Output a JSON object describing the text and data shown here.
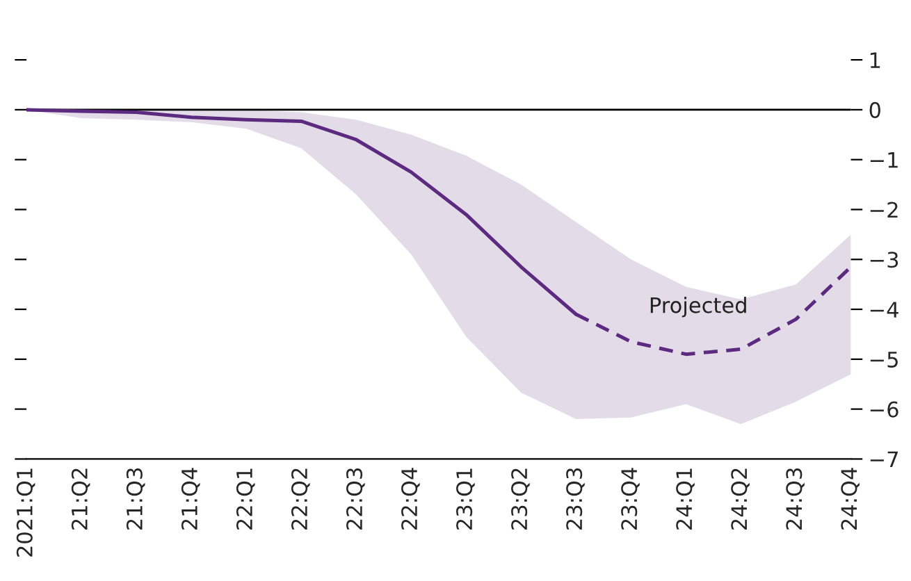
{
  "chart_data": {
    "type": "line",
    "categories": [
      "2021:Q1",
      "21:Q2",
      "21:Q3",
      "21:Q4",
      "22:Q1",
      "22:Q2",
      "22:Q3",
      "22:Q4",
      "23:Q1",
      "23:Q2",
      "23:Q3",
      "23:Q4",
      "24:Q1",
      "24:Q2",
      "24:Q3",
      "24:Q4"
    ],
    "series": [
      {
        "color": "#5c2a7f",
        "line_style": "solid",
        "values": [
          0,
          -0.03,
          -0.05,
          -0.15,
          -0.2,
          -0.23,
          -0.6,
          -1.25,
          -2.1,
          -3.15,
          -4.1,
          null,
          null,
          null,
          null,
          null
        ],
        "lower": [
          0,
          -0.17,
          -0.2,
          -0.25,
          -0.38,
          -0.77,
          -1.7,
          -2.9,
          -4.55,
          -5.67,
          -6.2,
          -6.17,
          -5.9,
          -6.3,
          -5.85,
          -5.3
        ],
        "upper": [
          0,
          0,
          0,
          0,
          0,
          -0.05,
          -0.2,
          -0.5,
          -0.92,
          -1.5,
          -2.25,
          -3.0,
          -3.55,
          -3.8,
          -3.5,
          -2.5
        ]
      },
      {
        "color": "#5c2a7f",
        "line_style": "dashed",
        "values": [
          null,
          null,
          null,
          null,
          null,
          null,
          null,
          null,
          null,
          null,
          -4.1,
          -4.65,
          -4.9,
          -4.8,
          -4.2,
          -3.15
        ]
      }
    ],
    "ylim": [
      -7,
      1
    ],
    "yticks": [
      1,
      0,
      {
        "value": -1,
        "label": "−1"
      },
      {
        "value": -2,
        "label": "−2"
      },
      {
        "value": -3,
        "label": "−3"
      },
      {
        "value": -4,
        "label": "−4"
      },
      {
        "value": -5,
        "label": "−5"
      },
      {
        "value": -6,
        "label": "−6"
      },
      {
        "value": -7,
        "label": "−7"
      }
    ],
    "ref_lines": [
      {
        "axis": "y",
        "value": 0,
        "label": null,
        "color": "#000000"
      }
    ],
    "annotations": [
      "Projected"
    ],
    "grid": false,
    "legend": false
  }
}
